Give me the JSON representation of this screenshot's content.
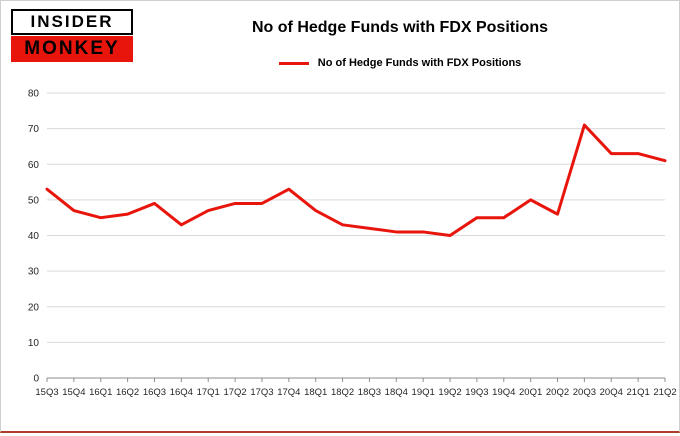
{
  "logo": {
    "line1": "INSIDER",
    "line2": "MONKEY"
  },
  "header": {
    "title": "No of Hedge Funds with FDX Positions"
  },
  "legend": {
    "label": "No of Hedge Funds with FDX Positions"
  },
  "chart_data": {
    "type": "line",
    "title": "No of Hedge Funds with FDX Positions",
    "categories": [
      "15Q3",
      "15Q4",
      "16Q1",
      "16Q2",
      "16Q3",
      "16Q4",
      "17Q1",
      "17Q2",
      "17Q3",
      "17Q4",
      "18Q1",
      "18Q2",
      "18Q3",
      "18Q4",
      "19Q1",
      "19Q2",
      "19Q3",
      "19Q4",
      "20Q1",
      "20Q2",
      "20Q3",
      "20Q4",
      "21Q1",
      "21Q2"
    ],
    "series": [
      {
        "name": "No of Hedge Funds with FDX Positions",
        "values": [
          53,
          47,
          45,
          46,
          49,
          43,
          47,
          49,
          49,
          53,
          47,
          43,
          42,
          41,
          41,
          40,
          45,
          45,
          50,
          46,
          71,
          63,
          63,
          61
        ]
      }
    ],
    "xlabel": "",
    "ylabel": "",
    "ylim": [
      0,
      80
    ],
    "ytick_step": 10,
    "grid": true,
    "legend_position": "top"
  },
  "colors": {
    "line": "#e8150d",
    "grid": "#d9d9d9",
    "axis": "#8c8c8c",
    "tick_text": "#262626",
    "bottom_rule": "#b03a2e"
  }
}
